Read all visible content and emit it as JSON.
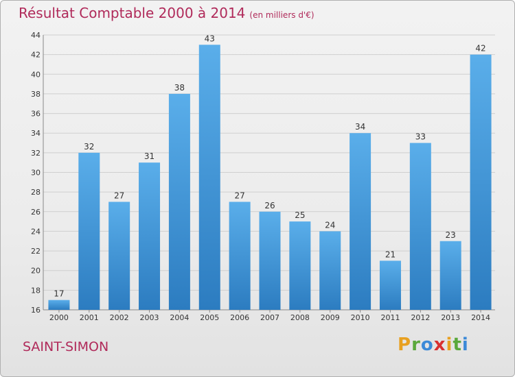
{
  "title": "Résultat Comptable 2000 à 2014",
  "subtitle": "(en milliers d'€)",
  "place": "SAINT-SIMON",
  "logo": {
    "letters": [
      "P",
      "r",
      "o",
      "x",
      "i",
      "t",
      "i"
    ],
    "colors": [
      "#e8a020",
      "#5aa83c",
      "#3c8ad8",
      "#d83030",
      "#e8a020",
      "#5aa83c",
      "#3c8ad8"
    ]
  },
  "colors": {
    "bar_light": "#5aaeea",
    "bar_dark": "#2c7cc0",
    "accent": "#b02a5a"
  },
  "chart_data": {
    "type": "bar",
    "categories": [
      "2000",
      "2001",
      "2002",
      "2003",
      "2004",
      "2005",
      "2006",
      "2007",
      "2008",
      "2009",
      "2010",
      "2011",
      "2012",
      "2013",
      "2014"
    ],
    "values": [
      17,
      32,
      27,
      31,
      38,
      43,
      27,
      26,
      25,
      24,
      34,
      21,
      33,
      23,
      42
    ],
    "title": "Résultat Comptable 2000 à 2014",
    "xlabel": "",
    "ylabel": "",
    "ylim": [
      16,
      44
    ],
    "yticks": [
      16,
      18,
      20,
      22,
      24,
      26,
      28,
      30,
      32,
      34,
      36,
      38,
      40,
      42,
      44
    ],
    "grid": true,
    "data_labels": true
  }
}
